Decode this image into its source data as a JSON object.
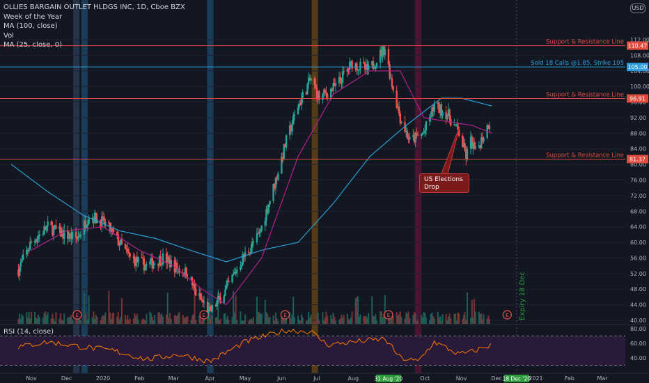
{
  "title": "OLLIES BARGAIN OUTLET HLDGS INC, 1D, Cboe BZX",
  "indicators": [
    "Week of the Year",
    "MA (100, close)",
    "Vol",
    "MA (25, close, 0)"
  ],
  "rsi_label": "RSI (14, close)",
  "currency": "USD",
  "callout": [
    "US Elections",
    "Drop"
  ],
  "expiry_label": "Expiry 18 Dec",
  "colors": {
    "background": "#131722",
    "up": "#26a69a",
    "down": "#ef5350",
    "ma100": "#2a9fd6",
    "ma25": "#b0208a",
    "rsi": "#ff7a00",
    "red_line": "#e04a3f",
    "blue_line": "#2d9cdb"
  },
  "chart_data": {
    "type": "candlestick",
    "y_axis": {
      "ticks": [
        40,
        44,
        48,
        52,
        56,
        60,
        64,
        68,
        72,
        76,
        80,
        84,
        88,
        92,
        96,
        100,
        104,
        108,
        112
      ],
      "tick_labels": [
        "40.00",
        "44.00",
        "48.00",
        "52.00",
        "56.00",
        "60.00",
        "64.00",
        "68.00",
        "72.00",
        "76.00",
        "80.00",
        "84.00",
        "88.00",
        "92.00",
        "96.00",
        "100.00",
        "104.00",
        "108.00",
        "112.00"
      ],
      "range": [
        39.5,
        115
      ]
    },
    "x_axis": {
      "labels": [
        "Nov",
        "Dec",
        "2020",
        "Feb",
        "Mar",
        "Apr",
        "May",
        "Jun",
        "Jul",
        "Aug",
        "Sep",
        "Oct",
        "Nov",
        "Dec",
        "2021",
        "Feb",
        "Mar"
      ],
      "highlighted_labels": [
        "31 Aug '20",
        "18 Dec '20"
      ]
    },
    "horizontal_lines": [
      {
        "name": "Support & Resistance Line",
        "value": 110.47,
        "label": "110.47",
        "color": "#e04a3f"
      },
      {
        "name": "Sold 18 Calls @1.85, Strike 105",
        "value": 105.0,
        "label": "105.00",
        "color": "#2d9cdb"
      },
      {
        "name": "Support & Resistance Line",
        "value": 96.91,
        "label": "96.91",
        "color": "#e04a3f"
      },
      {
        "name": "Support & Resistance Line",
        "value": 81.37,
        "label": "81.37",
        "color": "#e04a3f"
      }
    ],
    "close_path": [
      [
        "2019-10-21",
        53
      ],
      [
        "2019-11-01",
        60
      ],
      [
        "2019-11-15",
        64
      ],
      [
        "2019-11-29",
        62
      ],
      [
        "2019-12-10",
        61
      ],
      [
        "2019-12-20",
        67
      ],
      [
        "2020-01-02",
        65
      ],
      [
        "2020-01-10",
        62
      ],
      [
        "2020-01-24",
        56
      ],
      [
        "2020-02-07",
        54
      ],
      [
        "2020-02-21",
        56
      ],
      [
        "2020-03-06",
        53
      ],
      [
        "2020-03-13",
        52
      ],
      [
        "2020-03-20",
        47
      ],
      [
        "2020-04-01",
        42
      ],
      [
        "2020-04-15",
        48
      ],
      [
        "2020-04-29",
        56
      ],
      [
        "2020-05-13",
        62
      ],
      [
        "2020-05-27",
        76
      ],
      [
        "2020-06-05",
        86
      ],
      [
        "2020-06-15",
        95
      ],
      [
        "2020-06-26",
        102
      ],
      [
        "2020-07-03",
        97
      ],
      [
        "2020-07-17",
        100
      ],
      [
        "2020-07-31",
        106
      ],
      [
        "2020-08-14",
        104
      ],
      [
        "2020-08-28",
        110
      ],
      [
        "2020-09-02",
        102
      ],
      [
        "2020-09-10",
        92
      ],
      [
        "2020-09-18",
        86
      ],
      [
        "2020-09-30",
        88
      ],
      [
        "2020-10-09",
        95
      ],
      [
        "2020-10-20",
        93
      ],
      [
        "2020-10-30",
        88
      ],
      [
        "2020-11-05",
        82
      ],
      [
        "2020-11-09",
        86
      ],
      [
        "2020-11-13",
        83
      ],
      [
        "2020-11-25",
        91
      ]
    ],
    "ma100_path": [
      [
        "2019-10-15",
        80
      ],
      [
        "2019-11-15",
        73
      ],
      [
        "2019-12-15",
        67
      ],
      [
        "2020-01-15",
        63
      ],
      [
        "2020-02-15",
        61
      ],
      [
        "2020-03-15",
        58
      ],
      [
        "2020-04-15",
        55
      ],
      [
        "2020-05-15",
        58
      ],
      [
        "2020-06-15",
        60
      ],
      [
        "2020-07-15",
        70
      ],
      [
        "2020-08-15",
        82
      ],
      [
        "2020-09-15",
        90
      ],
      [
        "2020-10-15",
        97
      ],
      [
        "2020-11-01",
        97
      ],
      [
        "2020-11-27",
        95
      ]
    ],
    "ma25_path": [
      [
        "2019-11-01",
        58
      ],
      [
        "2019-12-01",
        63
      ],
      [
        "2020-01-01",
        64
      ],
      [
        "2020-02-01",
        58
      ],
      [
        "2020-03-01",
        54
      ],
      [
        "2020-03-25",
        48
      ],
      [
        "2020-04-15",
        44
      ],
      [
        "2020-05-15",
        56
      ],
      [
        "2020-06-15",
        82
      ],
      [
        "2020-07-15",
        98
      ],
      [
        "2020-08-15",
        104
      ],
      [
        "2020-09-10",
        104
      ],
      [
        "2020-09-30",
        92
      ],
      [
        "2020-10-20",
        91
      ],
      [
        "2020-11-10",
        90
      ],
      [
        "2020-11-27",
        88
      ]
    ],
    "rsi": {
      "ticks": [
        40,
        60,
        80
      ],
      "tick_labels": [
        "40.00",
        "60.00",
        "80.00"
      ],
      "band": [
        30,
        70
      ],
      "path": [
        [
          "2019-10-21",
          55
        ],
        [
          "2019-11-15",
          62
        ],
        [
          "2019-12-15",
          55
        ],
        [
          "2020-01-10",
          50
        ],
        [
          "2020-02-07",
          38
        ],
        [
          "2020-03-06",
          45
        ],
        [
          "2020-04-01",
          35
        ],
        [
          "2020-05-01",
          62
        ],
        [
          "2020-06-05",
          78
        ],
        [
          "2020-06-26",
          76
        ],
        [
          "2020-07-10",
          58
        ],
        [
          "2020-08-01",
          62
        ],
        [
          "2020-08-28",
          66
        ],
        [
          "2020-09-10",
          40
        ],
        [
          "2020-09-25",
          35
        ],
        [
          "2020-10-09",
          62
        ],
        [
          "2020-10-30",
          45
        ],
        [
          "2020-11-09",
          48
        ],
        [
          "2020-11-27",
          58
        ]
      ]
    },
    "weekly_band_dates": [
      "2019-12-09",
      "2019-12-16",
      "2020-04-01",
      "2020-06-29",
      "2020-09-25"
    ],
    "earnings_markers": [
      "2019-12-10",
      "2020-03-27",
      "2020-06-04",
      "2020-08-31",
      "2020-12-10"
    ],
    "vertical_marker_date": "2020-12-18"
  }
}
